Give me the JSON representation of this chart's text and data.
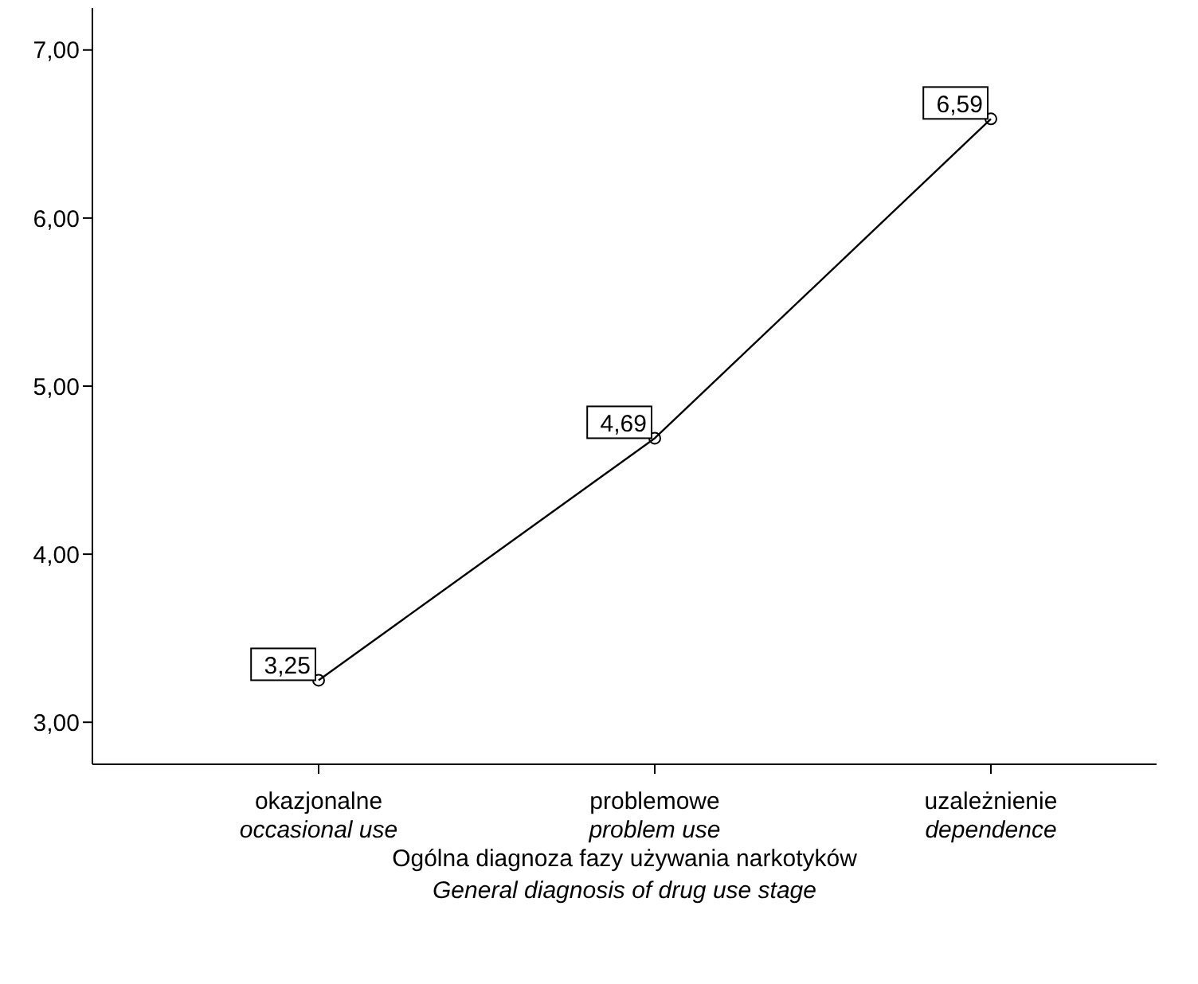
{
  "chart_data": {
    "type": "line",
    "xlabel": "Ogólna diagnoza fazy używania narkotyków\nGeneral diagnosis of drug use stage",
    "categories": [
      "okazjonalne\noccasional use",
      "problemowe\nproblem use",
      "uzależnienie\ndependence"
    ],
    "values": [
      3.25,
      4.69,
      6.59
    ],
    "value_labels": [
      "3,25",
      "4,69",
      "6,59"
    ],
    "color": "#000000",
    "marker": "circle",
    "line_style": "solid",
    "grid": false,
    "legend": false,
    "ylim": [
      2.75,
      7.25
    ],
    "yticks": [
      {
        "value": 3,
        "label": "3,00"
      },
      {
        "value": 4,
        "label": "4,00"
      },
      {
        "value": 5,
        "label": "5,00"
      },
      {
        "value": 6,
        "label": "6,00"
      },
      {
        "value": 7,
        "label": "7,00"
      }
    ]
  }
}
